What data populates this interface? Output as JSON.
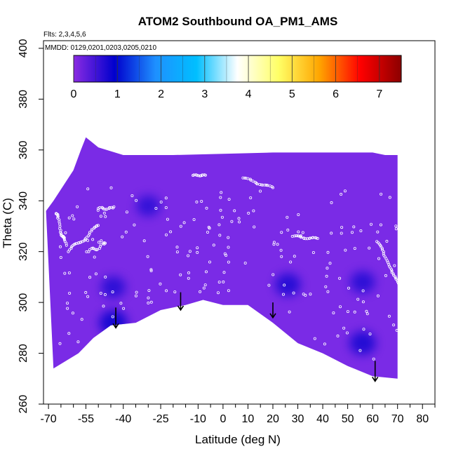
{
  "chart_data": {
    "type": "heatmap",
    "title": "ATOM2 Southbound OA_PM1_AMS",
    "flights_text": "Flts: 2,3,4,5,6",
    "dates_text": "MMDD: 0129,0201,0203,0205,0210",
    "xlabel": "Latitude (deg N)",
    "ylabel": "Theta (C)",
    "xlim": [
      -72,
      85
    ],
    "ylim": [
      260,
      403
    ],
    "x_ticks": [
      -70,
      -55,
      -40,
      -25,
      -10,
      0,
      10,
      20,
      30,
      40,
      50,
      60,
      70,
      80
    ],
    "x_minor_ticks": [
      -65,
      -60,
      -50,
      -45,
      -35,
      -30,
      -20,
      -15,
      -5,
      5,
      15,
      25,
      35,
      45,
      55,
      65,
      75,
      85
    ],
    "y_ticks": [
      260,
      280,
      300,
      320,
      340,
      360,
      380,
      400
    ],
    "colorbar": {
      "min": 0,
      "max": 7.5,
      "ticks": [
        0,
        1,
        2,
        3,
        4,
        5,
        6,
        7
      ],
      "stops": [
        "#8a2be2",
        "#0000cd",
        "#1e90ff",
        "#00bfff",
        "#ffffff",
        "#ffff66",
        "#ffa500",
        "#ff0000",
        "#8b0000"
      ]
    },
    "field_color": "#7a2be6",
    "dark_patches": [
      {
        "lat": -44,
        "theta": 292,
        "value": 1.0
      },
      {
        "lat": -44,
        "theta": 306,
        "value": 0.6
      },
      {
        "lat": 26,
        "theta": 307,
        "value": 0.7
      },
      {
        "lat": 56,
        "theta": 284,
        "value": 0.8
      },
      {
        "lat": 56,
        "theta": 308,
        "value": 0.6
      },
      {
        "lat": -30,
        "theta": 338,
        "value": 0.5
      }
    ],
    "surface_boundary": [
      [
        -68,
        274
      ],
      [
        -58,
        280
      ],
      [
        -52,
        286
      ],
      [
        -45,
        291
      ],
      [
        -35,
        292
      ],
      [
        -25,
        297
      ],
      [
        -15,
        299
      ],
      [
        -8,
        301
      ],
      [
        0,
        299
      ],
      [
        10,
        299
      ],
      [
        20,
        292
      ],
      [
        30,
        284
      ],
      [
        40,
        280
      ],
      [
        50,
        275
      ],
      [
        60,
        271
      ],
      [
        70,
        270
      ]
    ],
    "top_boundary": [
      [
        -71,
        336
      ],
      [
        -68,
        340
      ],
      [
        -64,
        346
      ],
      [
        -60,
        352
      ],
      [
        -57,
        360
      ],
      [
        -55,
        365
      ],
      [
        -50,
        361
      ],
      [
        -40,
        358
      ],
      [
        -20,
        358
      ],
      [
        20,
        359
      ],
      [
        60,
        359
      ],
      [
        65,
        358
      ]
    ],
    "arrows": [
      {
        "lat": -43,
        "theta_top": 298,
        "theta_bottom": 290
      },
      {
        "lat": -17,
        "theta_top": 304,
        "theta_bottom": 297
      },
      {
        "lat": 20,
        "theta_top": 300,
        "theta_bottom": 294
      },
      {
        "lat": 61,
        "theta_top": 277,
        "theta_bottom": 269
      }
    ],
    "tracks": [
      {
        "start": [
          -67,
          335
        ],
        "end": [
          -63,
          322
        ],
        "step": 0.5,
        "wobble": 3
      },
      {
        "start": [
          -62,
          320
        ],
        "end": [
          -50,
          330
        ],
        "step": 0.6,
        "wobble": 2
      },
      {
        "start": [
          -50,
          337
        ],
        "end": [
          -44,
          337
        ],
        "step": 0.6,
        "wobble": 1
      },
      {
        "start": [
          -12,
          350
        ],
        "end": [
          -7,
          350
        ],
        "step": 0.5,
        "wobble": 0.5
      },
      {
        "start": [
          8,
          349
        ],
        "end": [
          20,
          345
        ],
        "step": 0.7,
        "wobble": 1
      },
      {
        "start": [
          28,
          326
        ],
        "end": [
          38,
          325
        ],
        "step": 0.6,
        "wobble": 1
      },
      {
        "start": [
          62,
          324
        ],
        "end": [
          72,
          304
        ],
        "step": 0.7,
        "wobble": 1
      },
      {
        "start": [
          -54,
          320
        ],
        "end": [
          -47,
          323
        ],
        "step": 0.6,
        "wobble": 2
      }
    ]
  }
}
